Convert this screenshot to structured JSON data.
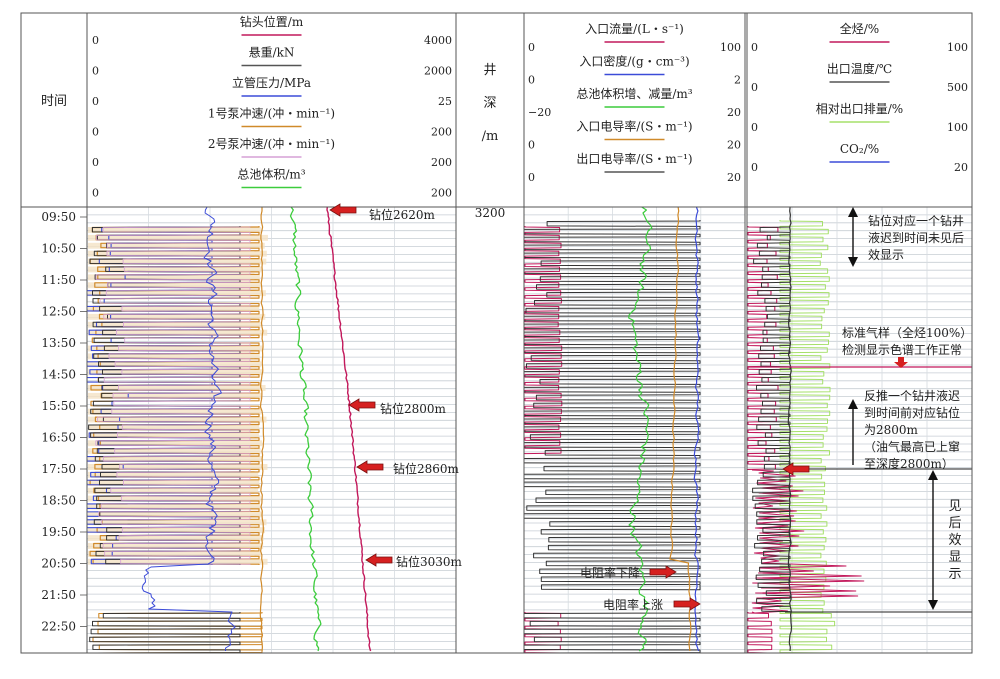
{
  "headers": {
    "time_label": "时间",
    "depth_label": [
      "井",
      "深",
      "/m"
    ],
    "track1": [
      {
        "name": "钻头位置/m",
        "min": "0",
        "max": "4000",
        "color": "#c2185b"
      },
      {
        "name": "悬重/kN",
        "min": "0",
        "max": "2000",
        "color": "#555555"
      },
      {
        "name": "立管压力/MPa",
        "min": "0",
        "max": "25",
        "color": "#3b4bd8"
      },
      {
        "name": "1号泵冲速/(冲・min⁻¹)",
        "min": "0",
        "max": "200",
        "color": "#d08a2a"
      },
      {
        "name": "2号泵冲速/(冲・min⁻¹)",
        "min": "0",
        "max": "200",
        "color": "#d6a0d6"
      },
      {
        "name": "总池体积/m³",
        "min": "0",
        "max": "200",
        "color": "#3ccc3c"
      }
    ],
    "track2": [
      {
        "name": "入口流量/(L・s⁻¹)",
        "min": "0",
        "max": "100",
        "color": "#c2185b"
      },
      {
        "name": "入口密度/(g・cm⁻³)",
        "min": "0",
        "max": "2",
        "color": "#3b4bd8"
      },
      {
        "name": "总池体积增、减量/m³",
        "min": "−20",
        "max": "20",
        "color": "#3ccc3c"
      },
      {
        "name": "入口电导率/(S・m⁻¹)",
        "min": "0",
        "max": "20",
        "color": "#d08a2a"
      },
      {
        "name": "出口电导率/(S・m⁻¹)",
        "min": "0",
        "max": "20",
        "color": "#555555"
      }
    ],
    "track3": [
      {
        "name": "全烃/%",
        "min": "0",
        "max": "100",
        "color": "#c2185b"
      },
      {
        "name": "出口温度/℃",
        "min": "0",
        "max": "500",
        "color": "#555555"
      },
      {
        "name": "相对出口排量/%",
        "min": "0",
        "max": "100",
        "color": "#a6e06a"
      },
      {
        "name": "CO₂/%",
        "min": "0",
        "max": "20",
        "color": "#3b4bd8"
      }
    ]
  },
  "chart_data": {
    "type": "line",
    "time_ticks": [
      "09:50",
      "10:50",
      "11:50",
      "12:50",
      "13:50",
      "14:50",
      "15:50",
      "16:50",
      "17:50",
      "18:50",
      "19:50",
      "20:50",
      "21:50",
      "22:50"
    ],
    "depth_value": "3200",
    "bit_position_series": {
      "name": "钻头位置/m",
      "unit": "m"
    },
    "annotations": {
      "drill_2620": "钻位2620m",
      "drill_2800": "钻位2800m",
      "drill_2860": "钻位2860m",
      "drill_3030": "钻位3030m",
      "resistivity_down": "电阻率下降",
      "resistivity_up": "电阻率上涨",
      "no_show_lines": [
        "钻位对应一个钻井",
        "液迟到时间未见后",
        "效显示"
      ],
      "std_gas_lines": [
        "标准气样（全烃100%）",
        "检测显示色谱工作正常"
      ],
      "backcalc_lines": [
        "反推一个钻井液迟",
        "到时间前对应钻位",
        "为2800m",
        "（油气最高已上窜",
        "至深度2800m）"
      ],
      "show_lines": [
        "见",
        "后",
        "效",
        "显",
        "示"
      ]
    }
  }
}
